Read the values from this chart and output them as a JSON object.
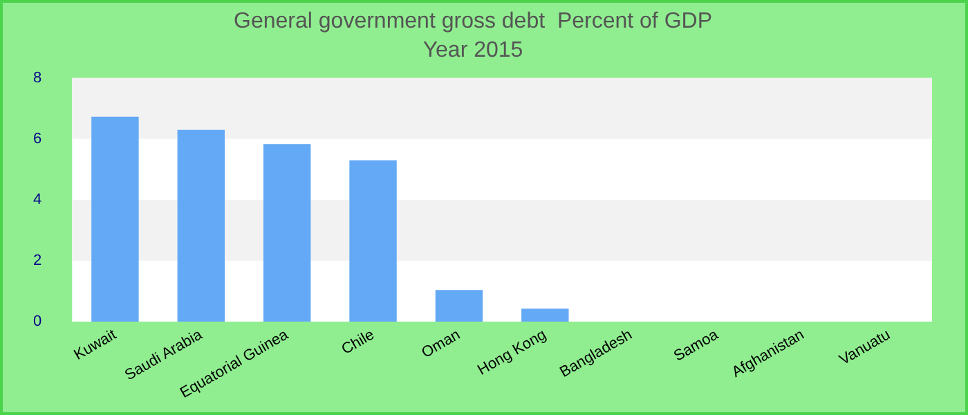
{
  "chart_data": {
    "type": "bar",
    "title": "General government gross debt  Percent of GDP",
    "subtitle": "Year 2015",
    "categories": [
      "Kuwait",
      "Saudi Arabia",
      "Equatorial Guinea",
      "Chile",
      "Oman",
      "Hong Kong",
      "Bangladesh",
      "Samoa",
      "Afghanistan",
      "Vanuatu"
    ],
    "values": [
      6.73,
      6.3,
      5.83,
      5.3,
      1.04,
      0.43,
      0,
      0,
      0,
      0
    ],
    "color": "#63a9f5",
    "ylim": [
      0,
      8
    ],
    "yticks": [
      0,
      2,
      4,
      6,
      8
    ],
    "legend": false,
    "bands": [
      {
        "axis": "y",
        "from": 2,
        "to": 4,
        "color": "#f2f2f2"
      },
      {
        "axis": "y",
        "from": 6,
        "to": 8,
        "color": "#f2f2f2"
      }
    ]
  }
}
